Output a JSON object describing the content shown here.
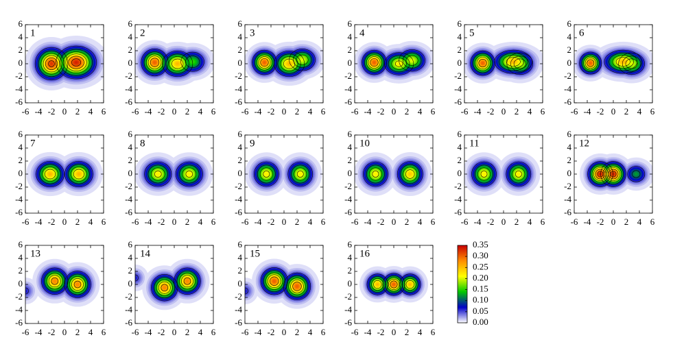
{
  "chart_data": {
    "type": "heatmap-grid",
    "xlim": [
      -6,
      6
    ],
    "ylim": [
      -6,
      6
    ],
    "xticks": [
      -6,
      -4,
      -2,
      0,
      2,
      4,
      6
    ],
    "yticks": [
      -6,
      -4,
      -2,
      0,
      2,
      4,
      6
    ],
    "panels": [
      {
        "label": "1",
        "peaks": [
          {
            "x": -2,
            "y": 0,
            "amp": 0.32,
            "sx": 1.3,
            "sy": 1.3
          },
          {
            "x": 1.8,
            "y": 0.2,
            "amp": 0.33,
            "sx": 1.6,
            "sy": 1.3
          }
        ]
      },
      {
        "label": "2",
        "peaks": [
          {
            "x": -3,
            "y": 0.2,
            "amp": 0.3,
            "sx": 1.1,
            "sy": 1.1
          },
          {
            "x": 0.5,
            "y": 0,
            "amp": 0.25,
            "sx": 1.3,
            "sy": 1.1
          },
          {
            "x": 2.8,
            "y": 0.3,
            "amp": 0.15,
            "sx": 1.2,
            "sy": 1.0
          }
        ]
      },
      {
        "label": "3",
        "peaks": [
          {
            "x": -3,
            "y": 0.2,
            "amp": 0.3,
            "sx": 1.0,
            "sy": 1.0
          },
          {
            "x": 0.8,
            "y": 0,
            "amp": 0.25,
            "sx": 1.3,
            "sy": 1.1
          },
          {
            "x": 2.8,
            "y": 0.6,
            "amp": 0.2,
            "sx": 1.2,
            "sy": 1.0
          }
        ]
      },
      {
        "label": "4",
        "peaks": [
          {
            "x": -3,
            "y": 0.2,
            "amp": 0.3,
            "sx": 1.0,
            "sy": 1.0
          },
          {
            "x": 0.8,
            "y": 0,
            "amp": 0.22,
            "sx": 1.3,
            "sy": 1.0
          },
          {
            "x": 2.8,
            "y": 0.5,
            "amp": 0.2,
            "sx": 1.2,
            "sy": 1.0
          }
        ]
      },
      {
        "label": "5",
        "peaks": [
          {
            "x": -3.2,
            "y": 0.1,
            "amp": 0.3,
            "sx": 1.0,
            "sy": 1.0
          },
          {
            "x": 1.5,
            "y": 0.3,
            "amp": 0.25,
            "sx": 1.6,
            "sy": 1.0
          },
          {
            "x": 2.5,
            "y": 0,
            "amp": 0.2,
            "sx": 1.2,
            "sy": 1.0
          }
        ]
      },
      {
        "label": "6",
        "peaks": [
          {
            "x": -3.5,
            "y": 0.1,
            "amp": 0.3,
            "sx": 0.9,
            "sy": 0.9
          },
          {
            "x": 1.5,
            "y": 0.3,
            "amp": 0.25,
            "sx": 1.6,
            "sy": 1.0
          },
          {
            "x": 2.8,
            "y": 0,
            "amp": 0.2,
            "sx": 1.2,
            "sy": 1.0
          }
        ]
      },
      {
        "label": "7",
        "peaks": [
          {
            "x": -2.2,
            "y": 0,
            "amp": 0.25,
            "sx": 1.2,
            "sy": 1.1
          },
          {
            "x": 2.2,
            "y": 0,
            "amp": 0.25,
            "sx": 1.2,
            "sy": 1.1
          }
        ]
      },
      {
        "label": "8",
        "peaks": [
          {
            "x": -2.5,
            "y": 0,
            "amp": 0.22,
            "sx": 1.2,
            "sy": 1.1
          },
          {
            "x": 2.3,
            "y": 0,
            "amp": 0.22,
            "sx": 1.2,
            "sy": 1.1
          }
        ]
      },
      {
        "label": "9",
        "peaks": [
          {
            "x": -2.7,
            "y": 0,
            "amp": 0.22,
            "sx": 1.1,
            "sy": 1.1
          },
          {
            "x": 2.5,
            "y": 0,
            "amp": 0.22,
            "sx": 1.1,
            "sy": 1.1
          }
        ]
      },
      {
        "label": "10",
        "peaks": [
          {
            "x": -2.8,
            "y": 0,
            "amp": 0.22,
            "sx": 1.1,
            "sy": 1.1
          },
          {
            "x": 2.5,
            "y": 0,
            "amp": 0.24,
            "sx": 1.1,
            "sy": 1.1
          }
        ]
      },
      {
        "label": "11",
        "peaks": [
          {
            "x": -3,
            "y": 0,
            "amp": 0.22,
            "sx": 1.1,
            "sy": 1.1
          },
          {
            "x": 2.3,
            "y": 0,
            "amp": 0.22,
            "sx": 1.1,
            "sy": 1.1
          }
        ]
      },
      {
        "label": "12",
        "peaks": [
          {
            "x": -2,
            "y": 0,
            "amp": 0.33,
            "sx": 1.0,
            "sy": 1.0
          },
          {
            "x": 0,
            "y": 0,
            "amp": 0.33,
            "sx": 1.0,
            "sy": 1.0
          },
          {
            "x": 3.5,
            "y": 0,
            "amp": 0.12,
            "sx": 1.0,
            "sy": 0.9
          }
        ]
      },
      {
        "label": "13",
        "peaks": [
          {
            "x": -6,
            "y": -1,
            "amp": 0.06,
            "sx": 0.8,
            "sy": 0.8
          },
          {
            "x": -1.5,
            "y": 0.5,
            "amp": 0.28,
            "sx": 1.1,
            "sy": 1.1
          },
          {
            "x": 2,
            "y": 0,
            "amp": 0.28,
            "sx": 1.1,
            "sy": 1.1
          }
        ]
      },
      {
        "label": "14",
        "peaks": [
          {
            "x": -6,
            "y": 1,
            "amp": 0.06,
            "sx": 0.8,
            "sy": 0.8
          },
          {
            "x": -1.5,
            "y": -0.5,
            "amp": 0.28,
            "sx": 1.1,
            "sy": 1.1
          },
          {
            "x": 2,
            "y": 0.5,
            "amp": 0.28,
            "sx": 1.1,
            "sy": 1.1
          }
        ]
      },
      {
        "label": "15",
        "peaks": [
          {
            "x": -6,
            "y": -1,
            "amp": 0.06,
            "sx": 0.8,
            "sy": 0.8
          },
          {
            "x": -1.5,
            "y": 0.5,
            "amp": 0.3,
            "sx": 1.1,
            "sy": 1.1
          },
          {
            "x": 2,
            "y": -0.3,
            "amp": 0.3,
            "sx": 1.1,
            "sy": 1.1
          }
        ]
      },
      {
        "label": "16",
        "peaks": [
          {
            "x": -2.5,
            "y": 0,
            "amp": 0.25,
            "sx": 0.9,
            "sy": 0.9
          },
          {
            "x": 0,
            "y": 0,
            "amp": 0.3,
            "sx": 0.9,
            "sy": 0.9
          },
          {
            "x": 2.5,
            "y": 0,
            "amp": 0.25,
            "sx": 0.9,
            "sy": 0.9
          }
        ]
      }
    ],
    "colorbar": {
      "clim": [
        0,
        0.35
      ],
      "colormap": [
        "#ffffff",
        "#0000c8",
        "#00c800",
        "#ffff00",
        "#ff8c00",
        "#c80000"
      ],
      "ticks": [
        {
          "value": 0,
          "label": "0.00"
        },
        {
          "value": 0.05,
          "label": "0.05"
        },
        {
          "value": 0.1,
          "label": "0.10"
        },
        {
          "value": 0.15,
          "label": "0.15"
        },
        {
          "value": 0.2,
          "label": "0.20"
        },
        {
          "value": 0.25,
          "label": "0.25"
        },
        {
          "value": 0.3,
          "label": "0.30"
        },
        {
          "value": 0.35,
          "label": "0.35"
        }
      ]
    }
  }
}
